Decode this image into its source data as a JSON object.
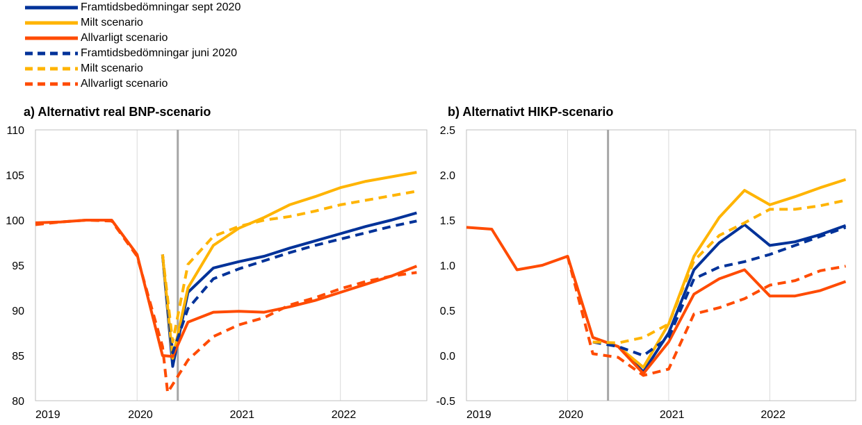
{
  "legend": [
    {
      "label": "Framtidsbedömningar sept 2020",
      "color": "#003299",
      "dashed": false
    },
    {
      "label": "Milt scenario",
      "color": "#FFB400",
      "dashed": false
    },
    {
      "label": "Allvarligt scenario",
      "color": "#FF4B00",
      "dashed": false
    },
    {
      "label": "Framtidsbedömningar juni 2020",
      "color": "#003299",
      "dashed": true
    },
    {
      "label": "Milt scenario",
      "color": "#FFB400",
      "dashed": true
    },
    {
      "label": "Allvarligt scenario",
      "color": "#FF4B00",
      "dashed": true
    }
  ],
  "chart_data": [
    {
      "type": "line",
      "title": "a) Alternativt real BNP-scenario",
      "xlim": [
        2019.0,
        2022.85
      ],
      "ylim": [
        80,
        110
      ],
      "yticks": [
        "80",
        "85",
        "90",
        "95",
        "100",
        "105",
        "110"
      ],
      "xticks": [
        {
          "value": 2019,
          "label": "2019"
        },
        {
          "value": 2020,
          "label": "2020"
        },
        {
          "value": 2021,
          "label": "2021"
        },
        {
          "value": 2022,
          "label": "2022"
        }
      ],
      "vline": 2020.4,
      "grid": true,
      "series": [
        {
          "name": "Framtidsbedömningar sept 2020",
          "color": "#003299",
          "dashed": false,
          "x": [
            2020.25,
            2020.35,
            2020.5,
            2020.75,
            2021.0,
            2021.25,
            2021.5,
            2021.75,
            2022.0,
            2022.25,
            2022.5,
            2022.75
          ],
          "y": [
            96.2,
            83.8,
            92.0,
            94.7,
            95.4,
            96.0,
            96.9,
            97.7,
            98.5,
            99.3,
            100.0,
            100.8
          ]
        },
        {
          "name": "Milt scenario",
          "color": "#FFB400",
          "dashed": false,
          "x": [
            2020.25,
            2020.35,
            2020.5,
            2020.75,
            2021.0,
            2021.25,
            2021.5,
            2021.75,
            2022.0,
            2022.25,
            2022.5,
            2022.75
          ],
          "y": [
            96.2,
            84.7,
            92.5,
            97.2,
            99.1,
            100.3,
            101.7,
            102.6,
            103.6,
            104.3,
            104.8,
            105.3
          ]
        },
        {
          "name": "Allvarligt scenario",
          "color": "#FF4B00",
          "dashed": false,
          "x": [
            2019.0,
            2019.25,
            2019.5,
            2019.75,
            2020.0,
            2020.25,
            2020.35,
            2020.5,
            2020.75,
            2021.0,
            2021.25,
            2021.5,
            2021.75,
            2022.0,
            2022.25,
            2022.5,
            2022.75
          ],
          "y": [
            99.7,
            99.8,
            100.0,
            100.0,
            96.2,
            85.0,
            84.9,
            88.7,
            89.8,
            89.9,
            89.8,
            90.4,
            91.1,
            92.0,
            92.9,
            93.8,
            94.9
          ]
        },
        {
          "name": "Framtidsbedömningar juni 2020",
          "color": "#003299",
          "dashed": true,
          "x": [
            2020.25,
            2020.35,
            2020.5,
            2020.75,
            2021.0,
            2021.25,
            2021.5,
            2021.75,
            2022.0,
            2022.25,
            2022.5,
            2022.75
          ],
          "y": [
            96.2,
            85.3,
            90.2,
            93.5,
            94.6,
            95.5,
            96.4,
            97.2,
            97.9,
            98.6,
            99.3,
            99.9
          ]
        },
        {
          "name": "Milt scenario",
          "color": "#FFB400",
          "dashed": true,
          "x": [
            2020.25,
            2020.35,
            2020.5,
            2020.75,
            2021.0,
            2021.25,
            2021.5,
            2021.75,
            2022.0,
            2022.25,
            2022.5,
            2022.75
          ],
          "y": [
            96.2,
            86.5,
            95.1,
            98.2,
            99.3,
            100.0,
            100.4,
            101.0,
            101.7,
            102.2,
            102.7,
            103.2
          ]
        },
        {
          "name": "Allvarligt scenario",
          "color": "#FF4B00",
          "dashed": true,
          "x": [
            2019.0,
            2019.25,
            2019.5,
            2019.75,
            2020.0,
            2020.25,
            2020.3,
            2020.5,
            2020.75,
            2021.0,
            2021.25,
            2021.5,
            2021.75,
            2022.0,
            2022.25,
            2022.5,
            2022.75
          ],
          "y": [
            99.5,
            99.8,
            100.0,
            99.9,
            96.0,
            86.0,
            80.9,
            84.5,
            87.1,
            88.4,
            89.2,
            90.6,
            91.4,
            92.4,
            93.2,
            93.8,
            94.2
          ]
        }
      ]
    },
    {
      "type": "line",
      "title": "b) Alternativt HIKP-scenario",
      "xlim": [
        2019.0,
        2022.85
      ],
      "ylim": [
        -0.5,
        2.5
      ],
      "yticks": [
        "-0.5",
        "0.0",
        "0.5",
        "1.0",
        "1.5",
        "2.0",
        "2.5"
      ],
      "xticks": [
        {
          "value": 2019,
          "label": "2019"
        },
        {
          "value": 2020,
          "label": "2020"
        },
        {
          "value": 2021,
          "label": "2021"
        },
        {
          "value": 2022,
          "label": "2022"
        }
      ],
      "vline": 2020.4,
      "grid": true,
      "series": [
        {
          "name": "Framtidsbedömningar sept 2020",
          "color": "#003299",
          "dashed": false,
          "x": [
            2020.25,
            2020.5,
            2020.75,
            2021.0,
            2021.25,
            2021.5,
            2021.75,
            2022.0,
            2022.25,
            2022.5,
            2022.75
          ],
          "y": [
            0.2,
            0.1,
            -0.18,
            0.25,
            0.95,
            1.25,
            1.45,
            1.22,
            1.26,
            1.34,
            1.44
          ]
        },
        {
          "name": "Milt scenario",
          "color": "#FFB400",
          "dashed": false,
          "x": [
            2020.25,
            2020.5,
            2020.75,
            2021.0,
            2021.25,
            2021.5,
            2021.75,
            2022.0,
            2022.25,
            2022.5,
            2022.75
          ],
          "y": [
            0.2,
            0.1,
            -0.13,
            0.35,
            1.1,
            1.53,
            1.83,
            1.67,
            1.76,
            1.86,
            1.95
          ]
        },
        {
          "name": "Allvarligt scenario",
          "color": "#FF4B00",
          "dashed": false,
          "x": [
            2019.0,
            2019.25,
            2019.5,
            2019.75,
            2020.0,
            2020.25,
            2020.5,
            2020.75,
            2021.0,
            2021.25,
            2021.5,
            2021.75,
            2022.0,
            2022.25,
            2022.5,
            2022.75
          ],
          "y": [
            1.42,
            1.4,
            0.95,
            1.0,
            1.1,
            0.2,
            0.1,
            -0.2,
            0.15,
            0.68,
            0.85,
            0.95,
            0.66,
            0.66,
            0.72,
            0.82
          ]
        },
        {
          "name": "Framtidsbedömningar juni 2020",
          "color": "#003299",
          "dashed": true,
          "x": [
            2020.25,
            2020.5,
            2020.75,
            2021.0,
            2021.25,
            2021.5,
            2021.75,
            2022.0,
            2022.25,
            2022.5,
            2022.75
          ],
          "y": [
            0.15,
            0.1,
            0.0,
            0.2,
            0.85,
            0.98,
            1.04,
            1.12,
            1.22,
            1.32,
            1.42
          ]
        },
        {
          "name": "Milt scenario",
          "color": "#FFB400",
          "dashed": true,
          "x": [
            2020.25,
            2020.5,
            2020.75,
            2021.0,
            2021.25,
            2021.5,
            2021.75,
            2022.0,
            2022.25,
            2022.5,
            2022.75
          ],
          "y": [
            0.15,
            0.14,
            0.2,
            0.35,
            1.05,
            1.33,
            1.47,
            1.62,
            1.62,
            1.66,
            1.72
          ]
        },
        {
          "name": "Allvarligt scenario",
          "color": "#FF4B00",
          "dashed": true,
          "x": [
            2020.0,
            2020.25,
            2020.5,
            2020.75,
            2021.0,
            2021.25,
            2021.5,
            2021.75,
            2022.0,
            2022.25,
            2022.5,
            2022.75
          ],
          "y": [
            1.1,
            0.02,
            -0.02,
            -0.22,
            -0.15,
            0.46,
            0.53,
            0.63,
            0.78,
            0.83,
            0.94,
            0.99
          ]
        }
      ]
    }
  ]
}
